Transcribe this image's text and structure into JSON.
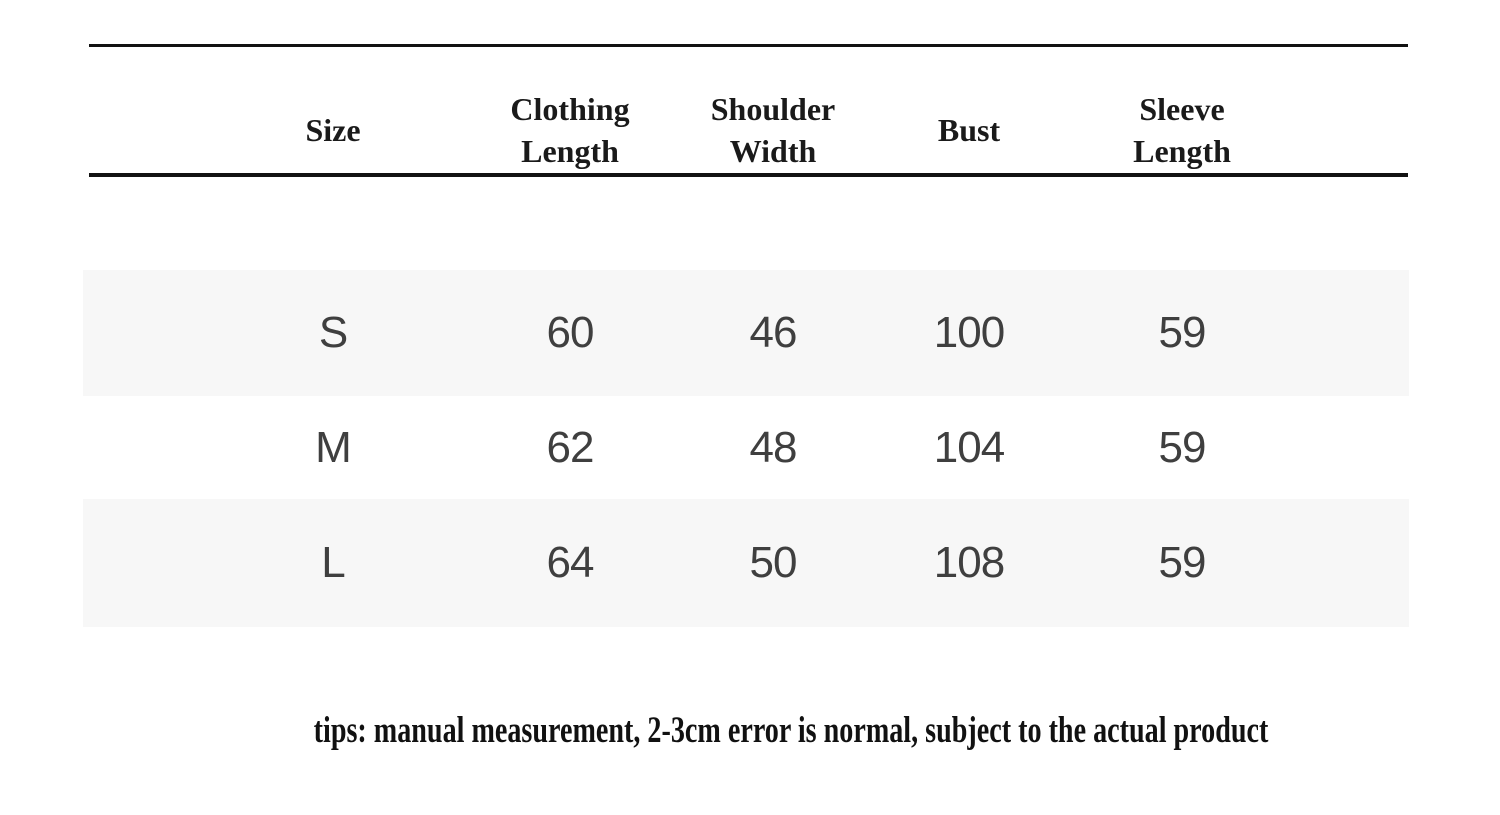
{
  "table": {
    "title": "size-chart",
    "header": {
      "size": [
        "Size"
      ],
      "clothing_length": [
        "Clothing",
        "Length"
      ],
      "shoulder_width": [
        "Shoulder",
        "Width"
      ],
      "bust": [
        "Bust"
      ],
      "sleeve_length": [
        "Sleeve",
        "Length"
      ]
    },
    "columns": [
      "Size",
      "Clothing Length",
      "Shoulder Width",
      "Bust",
      "Sleeve Length"
    ],
    "rows": [
      {
        "size": "S",
        "clothing_length": "60",
        "shoulder_width": "46",
        "bust": "100",
        "sleeve_length": "59"
      },
      {
        "size": "M",
        "clothing_length": "62",
        "shoulder_width": "48",
        "bust": "104",
        "sleeve_length": "59"
      },
      {
        "size": "L",
        "clothing_length": "64",
        "shoulder_width": "50",
        "bust": "108",
        "sleeve_length": "59"
      }
    ]
  },
  "footer": {
    "tips": "tips: manual measurement, 2-3cm error is normal, subject to the actual product"
  },
  "colors": {
    "rule": "#121212",
    "row_band": "#f7f7f7",
    "header_text": "#1a1a1a",
    "data_text": "#3f3f3f",
    "tips_text": "#111111"
  }
}
